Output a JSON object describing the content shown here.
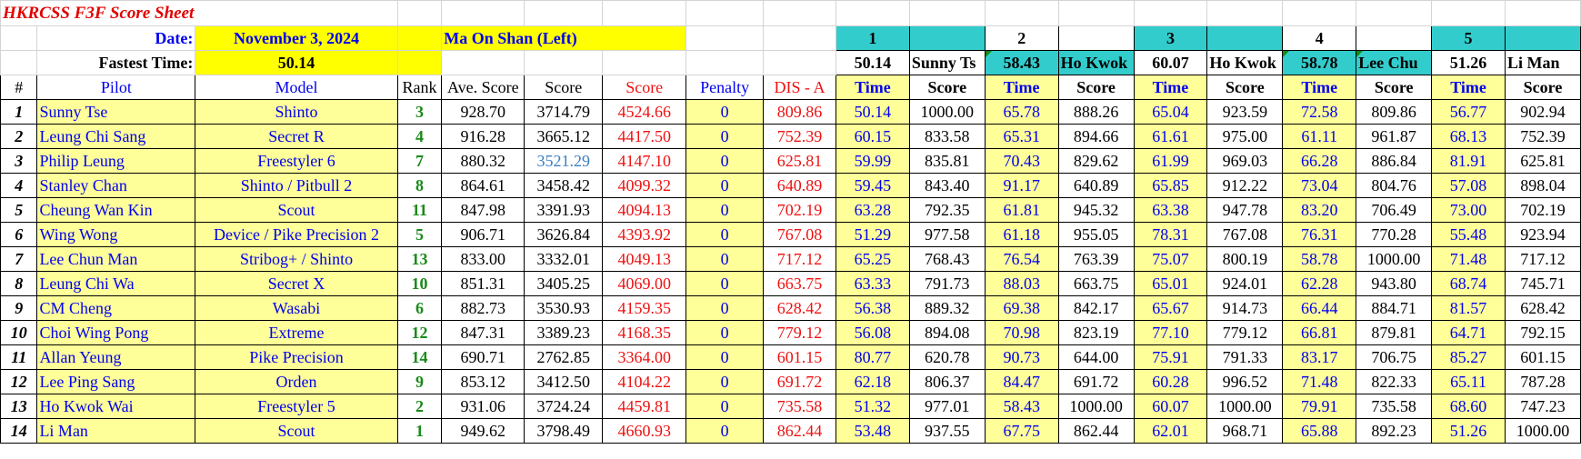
{
  "title": "HKRCSS F3F Score Sheet",
  "date_label": "Date:",
  "date_value": "November 3, 2024",
  "venue": "Ma On Shan (Left)",
  "fastest_label": "Fastest Time:",
  "fastest_value": "50.14",
  "colors": {
    "teal": "#33cccc",
    "yellow": "#ffff00",
    "light_yellow": "#ffff99",
    "red": "#ee1111",
    "blue": "#0000ee",
    "green": "#1a8a1a"
  },
  "rounds": [
    {
      "num": "1",
      "fastest": "50.14",
      "pilot": "Sunny Ts"
    },
    {
      "num": "2",
      "fastest": "58.43",
      "pilot": "Ho Kwok"
    },
    {
      "num": "3",
      "fastest": "60.07",
      "pilot": "Ho Kwok"
    },
    {
      "num": "4",
      "fastest": "58.78",
      "pilot": "Lee Chu"
    },
    {
      "num": "5",
      "fastest": "51.26",
      "pilot": "Li Man"
    }
  ],
  "headers": {
    "num": "#",
    "pilot": "Pilot",
    "model": "Model",
    "rank": "Rank",
    "ave_score": "Ave. Score",
    "score": "Score",
    "score_total": "Score",
    "penalty": "Penalty",
    "dis": "DIS - A",
    "time": "Time",
    "round_score": "Score"
  },
  "pilots": [
    {
      "num": "1",
      "pilot": "Sunny Tse",
      "model": "Shinto",
      "rank": "3",
      "ave": "928.70",
      "score": "3714.79",
      "total": "4524.66",
      "penalty": "0",
      "dis": "809.86",
      "rounds": [
        [
          "50.14",
          "1000.00"
        ],
        [
          "65.78",
          "888.26"
        ],
        [
          "65.04",
          "923.59"
        ],
        [
          "72.58",
          "809.86"
        ],
        [
          "56.77",
          "902.94"
        ]
      ]
    },
    {
      "num": "2",
      "pilot": "Leung Chi Sang",
      "model": "Secret R",
      "rank": "4",
      "ave": "916.28",
      "score": "3665.12",
      "total": "4417.50",
      "penalty": "0",
      "dis": "752.39",
      "rounds": [
        [
          "60.15",
          "833.58"
        ],
        [
          "65.31",
          "894.66"
        ],
        [
          "61.61",
          "975.00"
        ],
        [
          "61.11",
          "961.87"
        ],
        [
          "68.13",
          "752.39"
        ]
      ]
    },
    {
      "num": "3",
      "pilot": "Philip Leung",
      "model": "Freestyler 6",
      "rank": "7",
      "ave": "880.32",
      "score": "3521.29",
      "total": "4147.10",
      "penalty": "0",
      "dis": "625.81",
      "rounds": [
        [
          "59.99",
          "835.81"
        ],
        [
          "70.43",
          "829.62"
        ],
        [
          "61.99",
          "969.03"
        ],
        [
          "66.28",
          "886.84"
        ],
        [
          "81.91",
          "625.81"
        ]
      ]
    },
    {
      "num": "4",
      "pilot": "Stanley Chan",
      "model": "Shinto  / Pitbull 2",
      "rank": "8",
      "ave": "864.61",
      "score": "3458.42",
      "total": "4099.32",
      "penalty": "0",
      "dis": "640.89",
      "rounds": [
        [
          "59.45",
          "843.40"
        ],
        [
          "91.17",
          "640.89"
        ],
        [
          "65.85",
          "912.22"
        ],
        [
          "73.04",
          "804.76"
        ],
        [
          "57.08",
          "898.04"
        ]
      ]
    },
    {
      "num": "5",
      "pilot": "Cheung Wan Kin",
      "model": "Scout",
      "rank": "11",
      "ave": "847.98",
      "score": "3391.93",
      "total": "4094.13",
      "penalty": "0",
      "dis": "702.19",
      "rounds": [
        [
          "63.28",
          "792.35"
        ],
        [
          "61.81",
          "945.32"
        ],
        [
          "63.38",
          "947.78"
        ],
        [
          "83.20",
          "706.49"
        ],
        [
          "73.00",
          "702.19"
        ]
      ]
    },
    {
      "num": "6",
      "pilot": "Wing Wong",
      "model": "Device / Pike Precision 2",
      "rank": "5",
      "ave": "906.71",
      "score": "3626.84",
      "total": "4393.92",
      "penalty": "0",
      "dis": "767.08",
      "rounds": [
        [
          "51.29",
          "977.58"
        ],
        [
          "61.18",
          "955.05"
        ],
        [
          "78.31",
          "767.08"
        ],
        [
          "76.31",
          "770.28"
        ],
        [
          "55.48",
          "923.94"
        ]
      ]
    },
    {
      "num": "7",
      "pilot": "Lee Chun Man",
      "model": "Stribog+ / Shinto",
      "rank": "13",
      "ave": "833.00",
      "score": "3332.01",
      "total": "4049.13",
      "penalty": "0",
      "dis": "717.12",
      "rounds": [
        [
          "65.25",
          "768.43"
        ],
        [
          "76.54",
          "763.39"
        ],
        [
          "75.07",
          "800.19"
        ],
        [
          "58.78",
          "1000.00"
        ],
        [
          "71.48",
          "717.12"
        ]
      ]
    },
    {
      "num": "8",
      "pilot": "Leung Chi Wa",
      "model": "Secret X",
      "rank": "10",
      "ave": "851.31",
      "score": "3405.25",
      "total": "4069.00",
      "penalty": "0",
      "dis": "663.75",
      "rounds": [
        [
          "63.33",
          "791.73"
        ],
        [
          "88.03",
          "663.75"
        ],
        [
          "65.01",
          "924.01"
        ],
        [
          "62.28",
          "943.80"
        ],
        [
          "68.74",
          "745.71"
        ]
      ]
    },
    {
      "num": "9",
      "pilot": "CM Cheng",
      "model": "Wasabi",
      "rank": "6",
      "ave": "882.73",
      "score": "3530.93",
      "total": "4159.35",
      "penalty": "0",
      "dis": "628.42",
      "rounds": [
        [
          "56.38",
          "889.32"
        ],
        [
          "69.38",
          "842.17"
        ],
        [
          "65.67",
          "914.73"
        ],
        [
          "66.44",
          "884.71"
        ],
        [
          "81.57",
          "628.42"
        ]
      ]
    },
    {
      "num": "10",
      "pilot": "Choi Wing Pong",
      "model": "Extreme",
      "rank": "12",
      "ave": "847.31",
      "score": "3389.23",
      "total": "4168.35",
      "penalty": "0",
      "dis": "779.12",
      "rounds": [
        [
          "56.08",
          "894.08"
        ],
        [
          "70.98",
          "823.19"
        ],
        [
          "77.10",
          "779.12"
        ],
        [
          "66.81",
          "879.81"
        ],
        [
          "64.71",
          "792.15"
        ]
      ]
    },
    {
      "num": "11",
      "pilot": "Allan Yeung",
      "model": "Pike Precision",
      "rank": "14",
      "ave": "690.71",
      "score": "2762.85",
      "total": "3364.00",
      "penalty": "0",
      "dis": "601.15",
      "rounds": [
        [
          "80.77",
          "620.78"
        ],
        [
          "90.73",
          "644.00"
        ],
        [
          "75.91",
          "791.33"
        ],
        [
          "83.17",
          "706.75"
        ],
        [
          "85.27",
          "601.15"
        ]
      ]
    },
    {
      "num": "12",
      "pilot": "Lee Ping Sang",
      "model": "Orden",
      "rank": "9",
      "ave": "853.12",
      "score": "3412.50",
      "total": "4104.22",
      "penalty": "0",
      "dis": "691.72",
      "rounds": [
        [
          "62.18",
          "806.37"
        ],
        [
          "84.47",
          "691.72"
        ],
        [
          "60.28",
          "996.52"
        ],
        [
          "71.48",
          "822.33"
        ],
        [
          "65.11",
          "787.28"
        ]
      ]
    },
    {
      "num": "13",
      "pilot": "Ho Kwok Wai",
      "model": "Freestyler 5",
      "rank": "2",
      "ave": "931.06",
      "score": "3724.24",
      "total": "4459.81",
      "penalty": "0",
      "dis": "735.58",
      "rounds": [
        [
          "51.32",
          "977.01"
        ],
        [
          "58.43",
          "1000.00"
        ],
        [
          "60.07",
          "1000.00"
        ],
        [
          "79.91",
          "735.58"
        ],
        [
          "68.60",
          "747.23"
        ]
      ]
    },
    {
      "num": "14",
      "pilot": "Li Man",
      "model": "Scout",
      "rank": "1",
      "ave": "949.62",
      "score": "3798.49",
      "total": "4660.93",
      "penalty": "0",
      "dis": "862.44",
      "rounds": [
        [
          "53.48",
          "937.55"
        ],
        [
          "67.75",
          "862.44"
        ],
        [
          "62.01",
          "968.71"
        ],
        [
          "65.88",
          "892.23"
        ],
        [
          "51.26",
          "1000.00"
        ]
      ]
    }
  ]
}
